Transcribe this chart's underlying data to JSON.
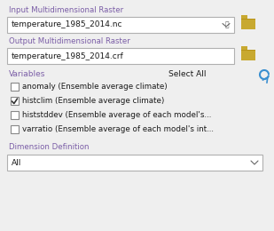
{
  "bg_color": "#efefef",
  "label_color": "#7b5ea7",
  "text_color": "#1a1a1a",
  "input_label1": "Input Multidimensional Raster",
  "input_value1": "temperature_1985_2014.nc",
  "input_label2": "Output Multidimensional Raster",
  "input_value2": "temperature_1985_2014.crf",
  "variables_label": "Variables",
  "select_all_label": "Select All",
  "checkboxes": [
    {
      "label": "anomaly (Ensemble average climate)",
      "checked": false
    },
    {
      "label": "histclim (Ensemble average climate)",
      "checked": true
    },
    {
      "label": "histstddev (Ensemble average of each model's...",
      "checked": false
    },
    {
      "label": "varratio (Ensemble average of each model's int...",
      "checked": false
    }
  ],
  "dim_label": "Dimension Definition",
  "dim_value": "All",
  "folder_color": "#c8a930",
  "folder_dark": "#b8941a",
  "refresh_color": "#3a8fd0",
  "box_bg": "#ffffff",
  "box_border": "#b0b0b0",
  "checked_border": "#555555",
  "arrow_color": "#666666"
}
